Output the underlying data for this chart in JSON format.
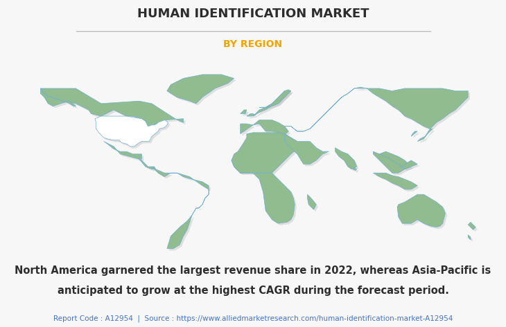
{
  "title": "HUMAN IDENTIFICATION MARKET",
  "subtitle": "BY REGION",
  "title_color": "#2d2d2d",
  "subtitle_color": "#f0a500",
  "body_text_line1": "North America garnered the largest revenue share in 2022, whereas Asia-Pacific is",
  "body_text_line2": "anticipated to grow at the highest CAGR during the forecast period.",
  "footer_text": "Report Code : A12954  |  Source : https://www.alliedmarketresearch.com/human-identification-market-A12954",
  "body_text_color": "#2d2d2d",
  "footer_text_color": "#4472c4",
  "map_land_color": "#90bc90",
  "map_usa_color": "#ffffff",
  "map_border_color": "#70b0d0",
  "map_shadow_color": "#999999",
  "background_color": "#f7f7f7",
  "separator_color": "#bbbbbb",
  "title_fontsize": 13,
  "subtitle_fontsize": 10,
  "body_fontsize": 10.5,
  "footer_fontsize": 7.5
}
